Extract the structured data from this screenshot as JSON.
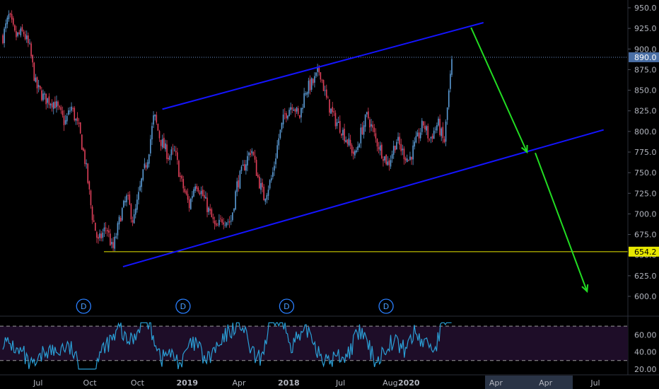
{
  "colors": {
    "background": "#000000",
    "candle_up": "#5b9bd5",
    "candle_down": "#e0405a",
    "channel": "#1414ff",
    "support": "#e8e800",
    "projection": "#22dd22",
    "price_label_bg": "#4a6fa5",
    "support_label_bg": "#e8e800",
    "oscillator_line": "#2a9fd6",
    "oscillator_band": "#1e0d28",
    "axis_text": "#b2b5be",
    "dividend_marker": "#2a7fff"
  },
  "price_axis_ticks": [
    "950.0",
    "925.0",
    "900.0",
    "875.0",
    "850.0",
    "825.0",
    "800.0",
    "775.0",
    "750.0",
    "725.0",
    "700.0",
    "675.0",
    "650.0",
    "625.0",
    "600.0"
  ],
  "price_labels": {
    "current": "890.0",
    "support": "654.2"
  },
  "oscillator_axis_ticks": [
    "60.00",
    "40.00",
    "20.00"
  ],
  "time_axis_ticks": [
    "Oct",
    "2018",
    "Apr",
    "Jul",
    "Oct",
    "2019",
    "Apr",
    "Jul",
    "Aug",
    "2020",
    "Apr",
    "Jul"
  ],
  "dividend_marker_label": "D",
  "chart_data": {
    "type": "candlestick",
    "title": "",
    "ylim": [
      590,
      960
    ],
    "oscillator_ylim": [
      15,
      80
    ],
    "oscillator_bands": [
      30,
      70
    ],
    "current_price": 890.0,
    "support_level": 654.2,
    "series": [
      {
        "t": 0.0,
        "p": 915
      },
      {
        "t": 0.3,
        "p": 940
      },
      {
        "t": 0.6,
        "p": 915
      },
      {
        "t": 1.0,
        "p": 920
      },
      {
        "t": 1.3,
        "p": 900
      },
      {
        "t": 1.6,
        "p": 855
      },
      {
        "t": 2.0,
        "p": 840
      },
      {
        "t": 2.5,
        "p": 835
      },
      {
        "t": 3.0,
        "p": 810
      },
      {
        "t": 3.3,
        "p": 830
      },
      {
        "t": 3.7,
        "p": 800
      },
      {
        "t": 4.0,
        "p": 760
      },
      {
        "t": 4.3,
        "p": 700
      },
      {
        "t": 4.6,
        "p": 665
      },
      {
        "t": 5.0,
        "p": 685
      },
      {
        "t": 5.3,
        "p": 655
      },
      {
        "t": 5.7,
        "p": 700
      },
      {
        "t": 6.0,
        "p": 720
      },
      {
        "t": 6.3,
        "p": 690
      },
      {
        "t": 6.7,
        "p": 740
      },
      {
        "t": 7.0,
        "p": 770
      },
      {
        "t": 7.3,
        "p": 820
      },
      {
        "t": 7.6,
        "p": 790
      },
      {
        "t": 8.0,
        "p": 770
      },
      {
        "t": 8.3,
        "p": 775
      },
      {
        "t": 8.6,
        "p": 740
      },
      {
        "t": 9.0,
        "p": 710
      },
      {
        "t": 9.3,
        "p": 740
      },
      {
        "t": 9.6,
        "p": 725
      },
      {
        "t": 10.0,
        "p": 700
      },
      {
        "t": 10.3,
        "p": 680
      },
      {
        "t": 10.6,
        "p": 695
      },
      {
        "t": 11.0,
        "p": 690
      },
      {
        "t": 11.3,
        "p": 735
      },
      {
        "t": 11.6,
        "p": 755
      },
      {
        "t": 12.0,
        "p": 780
      },
      {
        "t": 12.3,
        "p": 745
      },
      {
        "t": 12.6,
        "p": 720
      },
      {
        "t": 13.0,
        "p": 745
      },
      {
        "t": 13.3,
        "p": 790
      },
      {
        "t": 13.6,
        "p": 820
      },
      {
        "t": 14.0,
        "p": 835
      },
      {
        "t": 14.3,
        "p": 815
      },
      {
        "t": 14.6,
        "p": 850
      },
      {
        "t": 15.0,
        "p": 860
      },
      {
        "t": 15.3,
        "p": 875
      },
      {
        "t": 15.6,
        "p": 840
      },
      {
        "t": 16.0,
        "p": 815
      },
      {
        "t": 16.3,
        "p": 805
      },
      {
        "t": 16.6,
        "p": 790
      },
      {
        "t": 17.0,
        "p": 770
      },
      {
        "t": 17.3,
        "p": 800
      },
      {
        "t": 17.6,
        "p": 820
      },
      {
        "t": 18.0,
        "p": 790
      },
      {
        "t": 18.3,
        "p": 775
      },
      {
        "t": 18.6,
        "p": 760
      },
      {
        "t": 19.0,
        "p": 790
      },
      {
        "t": 19.3,
        "p": 775
      },
      {
        "t": 19.6,
        "p": 765
      },
      {
        "t": 20.0,
        "p": 790
      },
      {
        "t": 20.3,
        "p": 810
      },
      {
        "t": 20.6,
        "p": 790
      },
      {
        "t": 21.0,
        "p": 810
      },
      {
        "t": 21.3,
        "p": 785
      },
      {
        "t": 21.5,
        "p": 840
      },
      {
        "t": 21.7,
        "p": 890
      }
    ],
    "annotations": {
      "channel_upper": [
        {
          "t": 7.7,
          "p": 827
        },
        {
          "t": 23.2,
          "p": 932
        }
      ],
      "channel_lower": [
        {
          "t": 5.8,
          "p": 636
        },
        {
          "t": 29.0,
          "p": 802
        }
      ],
      "projection_leg_1": [
        {
          "t": 22.6,
          "p": 926
        },
        {
          "t": 25.3,
          "p": 775
        }
      ],
      "projection_leg_2": [
        {
          "t": 25.7,
          "p": 774
        },
        {
          "t": 28.2,
          "p": 606
        }
      ],
      "dividend_markers_t": [
        3.9,
        8.7,
        13.7,
        18.5
      ]
    },
    "xaxis_ticks_t": {
      "Oct": 1.7,
      "2018": 4.2,
      "Apr": 6.5,
      "Jul": 8.9,
      "Oct2": 11.4,
      "2019": 13.8,
      "Apr2": 16.3,
      "Jul2": 18.7,
      "Aug": 19.6,
      "2020": 23.8,
      "Apr3": 26.2,
      "Jul3": 28.6
    }
  }
}
